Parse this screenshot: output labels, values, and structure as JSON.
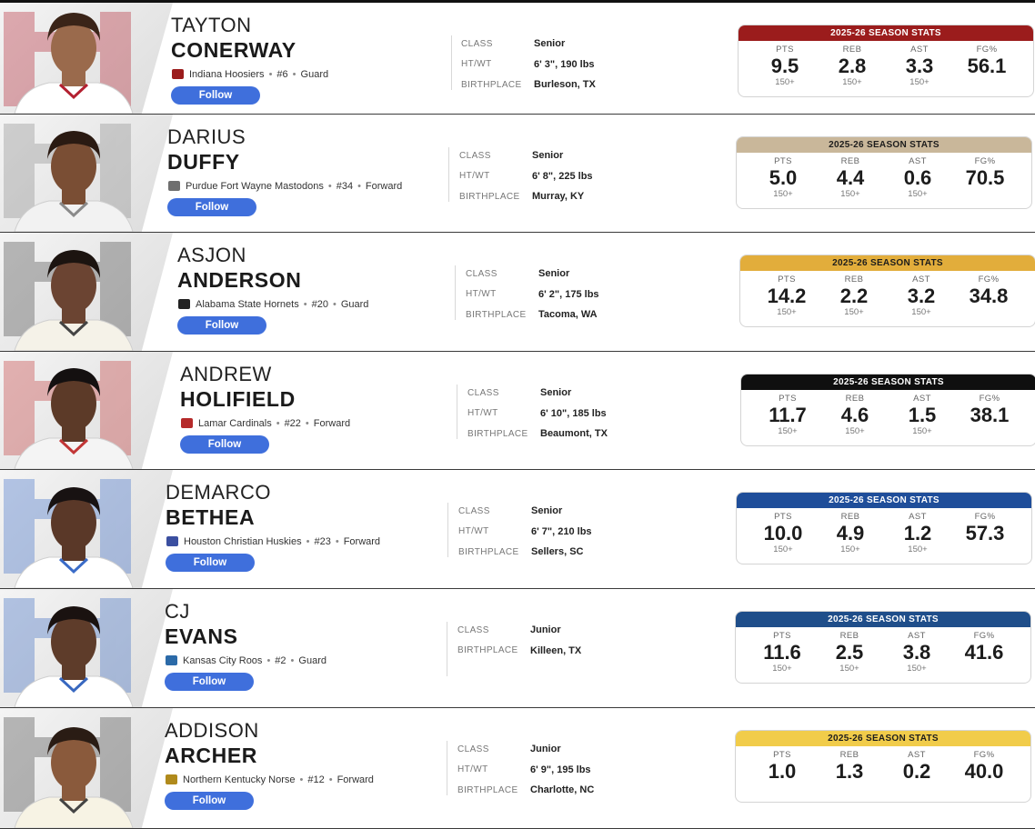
{
  "players": [
    {
      "first_name": "TAYTON",
      "last_name": "CONERWAY",
      "team": "Indiana Hoosiers",
      "number": "#6",
      "position": "Guard",
      "follow_label": "Follow",
      "bio": [
        {
          "label": "CLASS",
          "value": "Senior"
        },
        {
          "label": "HT/WT",
          "value": "6' 3\", 190 lbs"
        },
        {
          "label": "BIRTHPLACE",
          "value": "Burleson, TX"
        }
      ],
      "stats_title": "2025-26 SEASON STATS",
      "stats_color": "#9b1c1c",
      "stats_text_color": "#ffffff",
      "stats": [
        {
          "label": "PTS",
          "value": "9.5",
          "sub": "150+"
        },
        {
          "label": "REB",
          "value": "2.8",
          "sub": "150+"
        },
        {
          "label": "AST",
          "value": "3.3",
          "sub": "150+"
        },
        {
          "label": "FG%",
          "value": "56.1",
          "sub": ""
        }
      ],
      "logo_icon": "indiana-logo-icon"
    },
    {
      "first_name": "DARIUS",
      "last_name": "DUFFY",
      "team": "Purdue Fort Wayne Mastodons",
      "number": "#34",
      "position": "Forward",
      "follow_label": "Follow",
      "bio": [
        {
          "label": "CLASS",
          "value": "Senior"
        },
        {
          "label": "HT/WT",
          "value": "6' 8\", 225 lbs"
        },
        {
          "label": "BIRTHPLACE",
          "value": "Murray, KY"
        }
      ],
      "stats_title": "2025-26 SEASON STATS",
      "stats_color": "#c9b79a",
      "stats_text_color": "#1c1c1c",
      "stats": [
        {
          "label": "PTS",
          "value": "5.0",
          "sub": "150+"
        },
        {
          "label": "REB",
          "value": "4.4",
          "sub": "150+"
        },
        {
          "label": "AST",
          "value": "0.6",
          "sub": "150+"
        },
        {
          "label": "FG%",
          "value": "70.5",
          "sub": ""
        }
      ],
      "logo_icon": "mastodon-logo-icon"
    },
    {
      "first_name": "ASJON",
      "last_name": "ANDERSON",
      "team": "Alabama State Hornets",
      "number": "#20",
      "position": "Guard",
      "follow_label": "Follow",
      "bio": [
        {
          "label": "CLASS",
          "value": "Senior"
        },
        {
          "label": "HT/WT",
          "value": "6' 2\", 175 lbs"
        },
        {
          "label": "BIRTHPLACE",
          "value": "Tacoma, WA"
        }
      ],
      "stats_title": "2025-26 SEASON STATS",
      "stats_color": "#e2ad3b",
      "stats_text_color": "#1c1c1c",
      "stats": [
        {
          "label": "PTS",
          "value": "14.2",
          "sub": "150+"
        },
        {
          "label": "REB",
          "value": "2.2",
          "sub": "150+"
        },
        {
          "label": "AST",
          "value": "3.2",
          "sub": "150+"
        },
        {
          "label": "FG%",
          "value": "34.8",
          "sub": ""
        }
      ],
      "logo_icon": "hornet-logo-icon"
    },
    {
      "first_name": "ANDREW",
      "last_name": "HOLIFIELD",
      "team": "Lamar Cardinals",
      "number": "#22",
      "position": "Forward",
      "follow_label": "Follow",
      "bio": [
        {
          "label": "CLASS",
          "value": "Senior"
        },
        {
          "label": "HT/WT",
          "value": "6' 10\", 185 lbs"
        },
        {
          "label": "BIRTHPLACE",
          "value": "Beaumont, TX"
        }
      ],
      "stats_title": "2025-26 SEASON STATS",
      "stats_color": "#0f0f0f",
      "stats_text_color": "#ffffff",
      "stats": [
        {
          "label": "PTS",
          "value": "11.7",
          "sub": "150+"
        },
        {
          "label": "REB",
          "value": "4.6",
          "sub": "150+"
        },
        {
          "label": "AST",
          "value": "1.5",
          "sub": "150+"
        },
        {
          "label": "FG%",
          "value": "38.1",
          "sub": ""
        }
      ],
      "logo_icon": "lamar-logo-icon"
    },
    {
      "first_name": "DEMARCO",
      "last_name": "BETHEA",
      "team": "Houston Christian Huskies",
      "number": "#23",
      "position": "Forward",
      "follow_label": "Follow",
      "bio": [
        {
          "label": "CLASS",
          "value": "Senior"
        },
        {
          "label": "HT/WT",
          "value": "6' 7\", 210 lbs"
        },
        {
          "label": "BIRTHPLACE",
          "value": "Sellers, SC"
        }
      ],
      "stats_title": "2025-26 SEASON STATS",
      "stats_color": "#1f4e9a",
      "stats_text_color": "#ffffff",
      "stats": [
        {
          "label": "PTS",
          "value": "10.0",
          "sub": "150+"
        },
        {
          "label": "REB",
          "value": "4.9",
          "sub": "150+"
        },
        {
          "label": "AST",
          "value": "1.2",
          "sub": "150+"
        },
        {
          "label": "FG%",
          "value": "57.3",
          "sub": ""
        }
      ],
      "logo_icon": "husky-logo-icon"
    },
    {
      "first_name": "CJ",
      "last_name": "EVANS",
      "team": "Kansas City Roos",
      "number": "#2",
      "position": "Guard",
      "follow_label": "Follow",
      "bio": [
        {
          "label": "CLASS",
          "value": "Junior"
        },
        {
          "label": "BIRTHPLACE",
          "value": "Killeen, TX"
        }
      ],
      "stats_title": "2025-26 SEASON STATS",
      "stats_color": "#1f4e8a",
      "stats_text_color": "#ffffff",
      "stats": [
        {
          "label": "PTS",
          "value": "11.6",
          "sub": "150+"
        },
        {
          "label": "REB",
          "value": "2.5",
          "sub": "150+"
        },
        {
          "label": "AST",
          "value": "3.8",
          "sub": "150+"
        },
        {
          "label": "FG%",
          "value": "41.6",
          "sub": ""
        }
      ],
      "logo_icon": "roo-logo-icon"
    },
    {
      "first_name": "ADDISON",
      "last_name": "ARCHER",
      "team": "Northern Kentucky Norse",
      "number": "#12",
      "position": "Forward",
      "follow_label": "Follow",
      "bio": [
        {
          "label": "CLASS",
          "value": "Junior"
        },
        {
          "label": "HT/WT",
          "value": "6' 9\", 195 lbs"
        },
        {
          "label": "BIRTHPLACE",
          "value": "Charlotte, NC"
        }
      ],
      "stats_title": "2025-26 SEASON STATS",
      "stats_color": "#f1cc4a",
      "stats_text_color": "#1c1c1c",
      "stats": [
        {
          "label": "PTS",
          "value": "1.0",
          "sub": ""
        },
        {
          "label": "REB",
          "value": "1.3",
          "sub": ""
        },
        {
          "label": "AST",
          "value": "0.2",
          "sub": ""
        },
        {
          "label": "FG%",
          "value": "40.0",
          "sub": ""
        }
      ],
      "logo_icon": "norse-logo-icon"
    }
  ]
}
